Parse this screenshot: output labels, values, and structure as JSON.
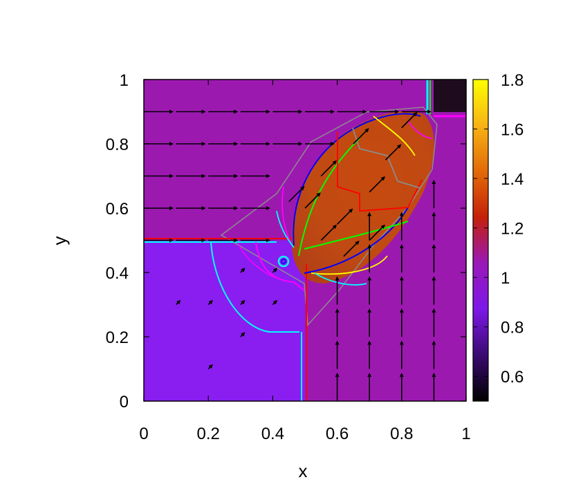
{
  "chart_data": {
    "type": "heatmap",
    "title": "",
    "xlabel": "x",
    "ylabel": "y",
    "xlim": [
      0,
      1
    ],
    "ylim": [
      0,
      1
    ],
    "x_ticks": [
      "0",
      "0.2",
      "0.4",
      "0.6",
      "0.8",
      "1"
    ],
    "y_ticks": [
      "0",
      "0.2",
      "0.4",
      "0.6",
      "0.8",
      "1"
    ],
    "colorbar": {
      "range": [
        0.5,
        1.8
      ],
      "ticks": [
        "0.6",
        "0.8",
        "1",
        "1.2",
        "1.4",
        "1.6",
        "1.8"
      ],
      "colors": [
        "#000000",
        "#3a0a70",
        "#7d18e8",
        "#9a18b8",
        "#c4200a",
        "#e26a08",
        "#f7b314",
        "#ffff00"
      ]
    },
    "regions": [
      {
        "name": "top-right corner",
        "x": [
          0.9,
          1.0
        ],
        "y": [
          0.9,
          1.0
        ],
        "value": 0.53,
        "color": "#1e0c1e"
      },
      {
        "name": "lower-left quadrant",
        "x": [
          0.0,
          0.5
        ],
        "y": [
          0.0,
          0.5
        ],
        "value": 0.85,
        "color": "#8a1ef0"
      },
      {
        "name": "background",
        "value": 1.0,
        "color": "#9c19b0"
      },
      {
        "name": "central jet",
        "value": 1.35,
        "color": "#bf4a10"
      }
    ],
    "vector_field": {
      "description": "velocity arrows",
      "upper_left_rows_y": [
        0.9,
        0.8,
        0.7,
        0.6,
        0.5
      ],
      "lower_right_cols_x": [
        0.6,
        0.7,
        0.8,
        0.9
      ]
    },
    "contour_colors": [
      "#ff0000",
      "#00ff00",
      "#0000ff",
      "#00ffff",
      "#ff00ff",
      "#ffff00",
      "#808080"
    ],
    "grid": false,
    "legend": "colorbar-right"
  }
}
